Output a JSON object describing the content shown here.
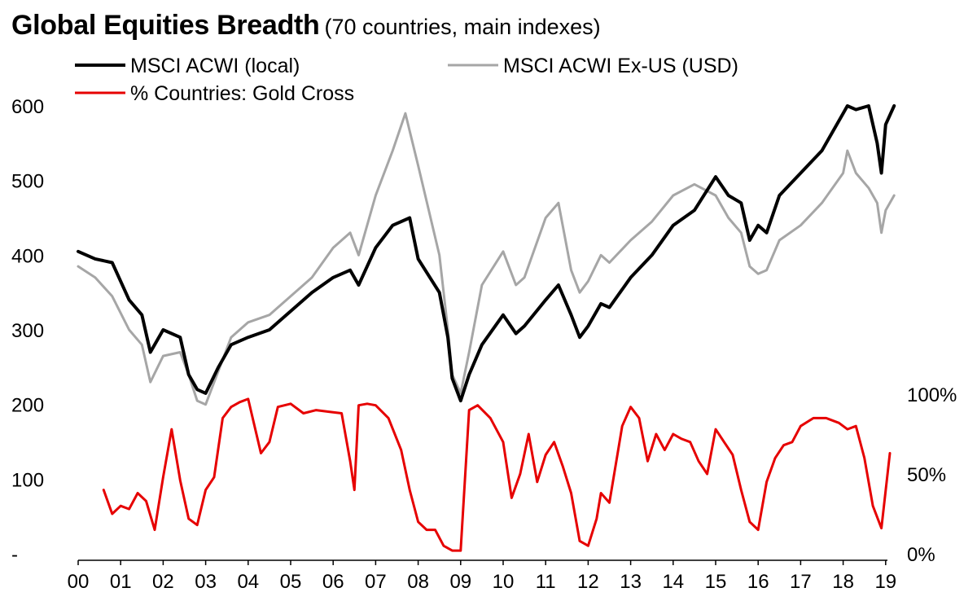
{
  "chart_data": {
    "type": "line",
    "title": "Global Equities Breadth",
    "subtitle": "(70 countries, main indexes)",
    "x_labels": [
      "00",
      "01",
      "02",
      "03",
      "04",
      "05",
      "06",
      "07",
      "08",
      "09",
      "10",
      "11",
      "12",
      "13",
      "14",
      "15",
      "16",
      "17",
      "18",
      "19"
    ],
    "x_range": [
      2000,
      2019.2
    ],
    "y_left": {
      "range": [
        0,
        650
      ],
      "ticks": [
        0,
        100,
        200,
        300,
        400,
        500,
        600
      ],
      "tick_labels": [
        "-",
        "100",
        "200",
        "300",
        "400",
        "500",
        "600"
      ]
    },
    "y_right": {
      "range_pct": [
        0,
        100
      ],
      "ticks": [
        0,
        50,
        100
      ],
      "tick_labels": [
        "0%",
        "50%",
        "100%"
      ]
    },
    "legend_position": "top-left",
    "grid": false,
    "series": [
      {
        "name": "MSCI ACWI (local)",
        "axis": "left",
        "color": "#000000",
        "x": [
          2000.0,
          2000.4,
          2000.8,
          2001.2,
          2001.5,
          2001.7,
          2002.0,
          2002.4,
          2002.6,
          2002.8,
          2003.0,
          2003.3,
          2003.6,
          2004.0,
          2004.5,
          2005.0,
          2005.5,
          2006.0,
          2006.4,
          2006.6,
          2007.0,
          2007.4,
          2007.8,
          2008.0,
          2008.5,
          2008.7,
          2008.8,
          2009.0,
          2009.2,
          2009.5,
          2010.0,
          2010.3,
          2010.5,
          2011.0,
          2011.3,
          2011.6,
          2011.8,
          2012.0,
          2012.3,
          2012.5,
          2013.0,
          2013.5,
          2014.0,
          2014.5,
          2015.0,
          2015.3,
          2015.6,
          2015.8,
          2016.0,
          2016.2,
          2016.5,
          2017.0,
          2017.5,
          2018.0,
          2018.1,
          2018.3,
          2018.6,
          2018.8,
          2018.9,
          2019.0,
          2019.2
        ],
        "y": [
          405,
          395,
          390,
          340,
          320,
          270,
          300,
          290,
          240,
          220,
          215,
          250,
          280,
          290,
          300,
          325,
          350,
          370,
          380,
          360,
          410,
          440,
          450,
          395,
          350,
          290,
          235,
          205,
          240,
          280,
          320,
          295,
          305,
          340,
          360,
          320,
          290,
          305,
          335,
          330,
          370,
          400,
          440,
          460,
          505,
          480,
          470,
          420,
          440,
          430,
          480,
          510,
          540,
          590,
          600,
          595,
          600,
          550,
          510,
          575,
          600
        ]
      },
      {
        "name": "MSCI ACWI Ex-US (USD)",
        "axis": "left",
        "color": "#a6a6a6",
        "x": [
          2000.0,
          2000.4,
          2000.8,
          2001.2,
          2001.5,
          2001.7,
          2002.0,
          2002.4,
          2002.6,
          2002.8,
          2003.0,
          2003.3,
          2003.6,
          2004.0,
          2004.5,
          2005.0,
          2005.5,
          2006.0,
          2006.4,
          2006.6,
          2007.0,
          2007.4,
          2007.7,
          2008.0,
          2008.5,
          2008.7,
          2008.8,
          2009.0,
          2009.2,
          2009.5,
          2010.0,
          2010.3,
          2010.5,
          2011.0,
          2011.3,
          2011.6,
          2011.8,
          2012.0,
          2012.3,
          2012.5,
          2013.0,
          2013.5,
          2014.0,
          2014.5,
          2015.0,
          2015.3,
          2015.6,
          2015.8,
          2016.0,
          2016.2,
          2016.5,
          2017.0,
          2017.5,
          2018.0,
          2018.1,
          2018.3,
          2018.6,
          2018.8,
          2018.9,
          2019.0,
          2019.2
        ],
        "y": [
          385,
          370,
          345,
          300,
          280,
          230,
          265,
          270,
          240,
          205,
          200,
          245,
          290,
          310,
          320,
          345,
          370,
          410,
          430,
          400,
          480,
          540,
          590,
          520,
          400,
          300,
          240,
          215,
          270,
          360,
          405,
          360,
          370,
          450,
          470,
          380,
          350,
          365,
          400,
          390,
          420,
          445,
          480,
          495,
          480,
          450,
          430,
          385,
          375,
          380,
          420,
          440,
          470,
          510,
          540,
          510,
          490,
          470,
          430,
          460,
          480
        ]
      },
      {
        "name": "% Countries: Gold Cross",
        "axis": "right",
        "color": "#e60000",
        "x": [
          2000.6,
          2000.8,
          2001.0,
          2001.2,
          2001.4,
          2001.6,
          2001.8,
          2002.0,
          2002.2,
          2002.4,
          2002.6,
          2002.8,
          2003.0,
          2003.2,
          2003.4,
          2003.6,
          2003.8,
          2004.0,
          2004.3,
          2004.5,
          2004.7,
          2005.0,
          2005.3,
          2005.6,
          2005.9,
          2006.2,
          2006.4,
          2006.5,
          2006.6,
          2006.8,
          2007.0,
          2007.3,
          2007.6,
          2007.8,
          2008.0,
          2008.2,
          2008.4,
          2008.6,
          2008.8,
          2009.0,
          2009.2,
          2009.4,
          2009.7,
          2010.0,
          2010.2,
          2010.4,
          2010.6,
          2010.8,
          2011.0,
          2011.2,
          2011.4,
          2011.6,
          2011.8,
          2012.0,
          2012.2,
          2012.3,
          2012.5,
          2012.8,
          2013.0,
          2013.2,
          2013.4,
          2013.6,
          2013.8,
          2014.0,
          2014.2,
          2014.4,
          2014.6,
          2014.8,
          2015.0,
          2015.2,
          2015.4,
          2015.6,
          2015.8,
          2016.0,
          2016.2,
          2016.4,
          2016.6,
          2016.8,
          2017.0,
          2017.3,
          2017.6,
          2017.9,
          2018.1,
          2018.3,
          2018.5,
          2018.7,
          2018.9,
          2019.1
        ],
        "y": [
          40,
          25,
          30,
          28,
          38,
          33,
          15,
          48,
          78,
          46,
          22,
          18,
          40,
          48,
          85,
          92,
          95,
          97,
          63,
          70,
          92,
          94,
          88,
          90,
          89,
          88,
          58,
          40,
          93,
          94,
          93,
          85,
          65,
          40,
          20,
          15,
          15,
          5,
          2,
          2,
          90,
          93,
          85,
          70,
          35,
          50,
          75,
          45,
          62,
          70,
          55,
          38,
          8,
          5,
          22,
          38,
          32,
          80,
          92,
          85,
          58,
          75,
          65,
          75,
          72,
          70,
          58,
          50,
          78,
          70,
          62,
          40,
          20,
          15,
          45,
          60,
          68,
          70,
          80,
          85,
          85,
          82,
          78,
          80,
          60,
          30,
          16,
          63
        ]
      }
    ]
  }
}
